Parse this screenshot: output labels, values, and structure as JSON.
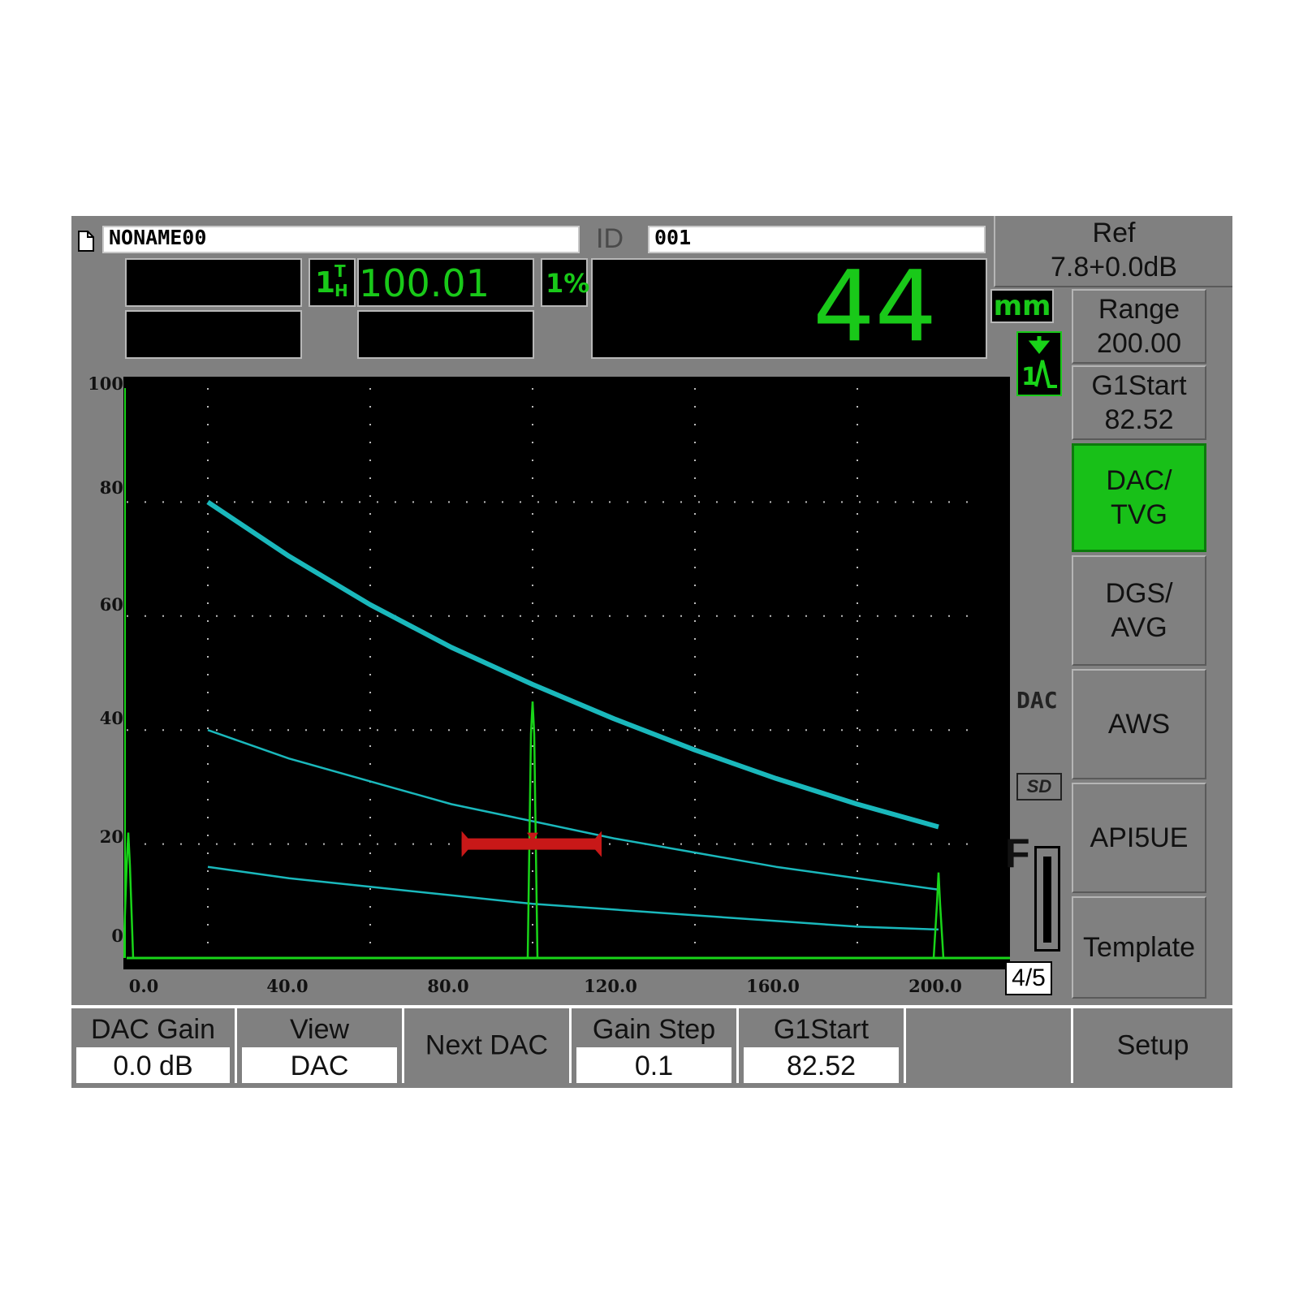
{
  "header": {
    "file_name": "NONAME00",
    "id_label": "ID",
    "id_value": "001",
    "gate_tag": "1",
    "gate_tag_sup": "T",
    "gate_tag_sub": "H",
    "measurement": "100.01",
    "amp_tag": "1%",
    "big_readout": "44"
  },
  "ref": {
    "label": "Ref",
    "value": "7.8+0.0dB"
  },
  "units": "mm",
  "side_status": {
    "dac": "DAC",
    "sd": "SD",
    "freeze": "F",
    "page": "4/5"
  },
  "right_menu": {
    "range": {
      "label": "Range",
      "value": "200.00"
    },
    "g1start": {
      "label": "G1Start",
      "value": "82.52"
    },
    "items": [
      {
        "line1": "DAC/",
        "line2": "TVG",
        "active": true,
        "disabled": false
      },
      {
        "line1": "DGS/",
        "line2": "AVG",
        "active": false,
        "disabled": true
      },
      {
        "line1": "AWS",
        "line2": "",
        "active": false,
        "disabled": true
      },
      {
        "line1": "API5UE",
        "line2": "",
        "active": false,
        "disabled": true
      },
      {
        "line1": "Template",
        "line2": "",
        "active": false,
        "disabled": true
      }
    ]
  },
  "bottom_bar": {
    "dac_gain": {
      "label": "DAC Gain",
      "value": "0.0 dB"
    },
    "view": {
      "label": "View",
      "value": "DAC"
    },
    "next_dac": {
      "label": "Next DAC"
    },
    "gain_step": {
      "label": "Gain Step",
      "value": "0.1"
    },
    "g1start": {
      "label": "G1Start",
      "value": "82.52"
    },
    "empty": {
      "label": ""
    },
    "setup": {
      "label": "Setup"
    }
  },
  "colors": {
    "screen": "#000000",
    "trace": "#19d419",
    "dac": "#1ab8bc",
    "gate": "#c81818",
    "panel": "#808080"
  },
  "chart_data": {
    "type": "line",
    "xlim": [
      0,
      200
    ],
    "ylim": [
      0,
      100
    ],
    "x_ticks": [
      "0.0",
      "40.0",
      "80.0",
      "120.0",
      "160.0",
      "200.0"
    ],
    "y_ticks": [
      "100",
      "80",
      "60",
      "40",
      "20",
      "0"
    ],
    "grid": true,
    "series": [
      {
        "role": "main",
        "x": [
          20,
          40,
          60,
          80,
          100,
          120,
          140,
          160,
          180,
          200
        ],
        "y": [
          80,
          70.5,
          62,
          54.5,
          48,
          42,
          36.5,
          31.5,
          27,
          23
        ]
      },
      {
        "role": "minus6",
        "x": [
          20,
          40,
          60,
          80,
          100,
          120,
          140,
          160,
          180,
          200
        ],
        "y": [
          40,
          35,
          31,
          27,
          24,
          21,
          18.5,
          16,
          14,
          12
        ]
      },
      {
        "role": "minus12",
        "x": [
          20,
          40,
          60,
          80,
          100,
          120,
          140,
          160,
          180,
          200
        ],
        "y": [
          16,
          14,
          12.5,
          11,
          9.5,
          8.5,
          7.5,
          6.5,
          5.5,
          5
        ]
      }
    ],
    "echoes": [
      {
        "x": 0,
        "height": 22
      },
      {
        "x": 100,
        "height": 45
      },
      {
        "x": 200,
        "height": 15
      }
    ],
    "gate": {
      "start": 82.52,
      "end": 117,
      "level": 20
    }
  }
}
